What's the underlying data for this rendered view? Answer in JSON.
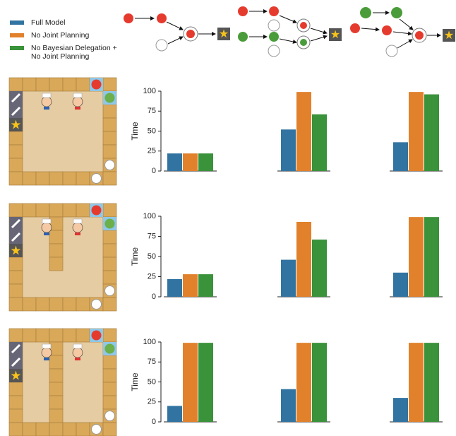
{
  "chart_data": [
    {
      "type": "bar",
      "ylabel": "Time",
      "categories": [
        null,
        null,
        null
      ],
      "ylim": [
        0,
        100
      ],
      "yticks": [
        0,
        25,
        50,
        75,
        100
      ],
      "series": [
        {
          "name": "Full Model",
          "color": "#3274a1",
          "values": [
            22,
            52,
            36
          ]
        },
        {
          "name": "No Joint Planning",
          "color": "#e1812c",
          "values": [
            22,
            99,
            99
          ]
        },
        {
          "name": "No Bayesian Delegation + No Joint Planning",
          "color": "#3a923a",
          "values": [
            22,
            71,
            96
          ]
        }
      ]
    },
    {
      "type": "bar",
      "ylabel": "Time",
      "categories": [
        null,
        null,
        null
      ],
      "ylim": [
        0,
        100
      ],
      "yticks": [
        0,
        25,
        50,
        75,
        100
      ],
      "series": [
        {
          "color": "#3274a1",
          "values": [
            22,
            46,
            30
          ]
        },
        {
          "color": "#e1812c",
          "values": [
            28,
            93,
            99
          ]
        },
        {
          "color": "#3a923a",
          "values": [
            28,
            71,
            99
          ]
        }
      ]
    },
    {
      "type": "bar",
      "ylabel": "Time",
      "categories": [
        null,
        null,
        null
      ],
      "ylim": [
        0,
        100
      ],
      "yticks": [
        0,
        25,
        50,
        75,
        100
      ],
      "series": [
        {
          "color": "#3274a1",
          "values": [
            20,
            41,
            30
          ]
        },
        {
          "color": "#e1812c",
          "values": [
            99,
            99,
            99
          ]
        },
        {
          "color": "#3a923a",
          "values": [
            99,
            99,
            99
          ]
        }
      ]
    }
  ]
}
